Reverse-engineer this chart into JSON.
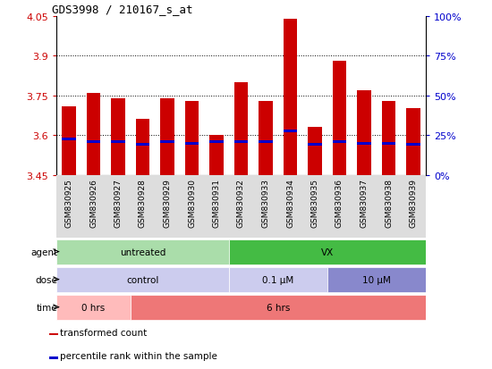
{
  "title": "GDS3998 / 210167_s_at",
  "samples": [
    "GSM830925",
    "GSM830926",
    "GSM830927",
    "GSM830928",
    "GSM830929",
    "GSM830930",
    "GSM830931",
    "GSM830932",
    "GSM830933",
    "GSM830934",
    "GSM830935",
    "GSM830936",
    "GSM830937",
    "GSM830938",
    "GSM830939"
  ],
  "bar_values": [
    3.71,
    3.76,
    3.74,
    3.66,
    3.74,
    3.73,
    3.6,
    3.8,
    3.73,
    4.04,
    3.63,
    3.88,
    3.77,
    3.73,
    3.7
  ],
  "percentile_values": [
    3.585,
    3.575,
    3.575,
    3.565,
    3.575,
    3.57,
    3.575,
    3.575,
    3.575,
    3.615,
    3.565,
    3.575,
    3.57,
    3.57,
    3.565
  ],
  "bar_bottom": 3.45,
  "ylim_min": 3.45,
  "ylim_max": 4.05,
  "yticks_left": [
    3.45,
    3.6,
    3.75,
    3.9,
    4.05
  ],
  "yticks_right": [
    0,
    25,
    50,
    75,
    100
  ],
  "yticks_right_vals": [
    3.45,
    3.6,
    3.75,
    3.9,
    4.05
  ],
  "hlines": [
    3.6,
    3.75,
    3.9
  ],
  "bar_color": "#cc0000",
  "percentile_color": "#0000cc",
  "bar_width": 0.55,
  "agent_labels": [
    {
      "label": "untreated",
      "start": 0,
      "end": 7,
      "color": "#aaddaa"
    },
    {
      "label": "VX",
      "start": 7,
      "end": 15,
      "color": "#44bb44"
    }
  ],
  "dose_labels": [
    {
      "label": "control",
      "start": 0,
      "end": 7,
      "color": "#ccccee"
    },
    {
      "label": "0.1 μM",
      "start": 7,
      "end": 11,
      "color": "#ccccee"
    },
    {
      "label": "10 μM",
      "start": 11,
      "end": 15,
      "color": "#8888cc"
    }
  ],
  "time_labels": [
    {
      "label": "0 hrs",
      "start": 0,
      "end": 3,
      "color": "#ffbbbb"
    },
    {
      "label": "6 hrs",
      "start": 3,
      "end": 15,
      "color": "#ee7777"
    }
  ],
  "legend_items": [
    {
      "color": "#cc0000",
      "label": "transformed count"
    },
    {
      "color": "#0000cc",
      "label": "percentile rank within the sample"
    }
  ],
  "main_bg": "#ffffff",
  "plot_bg": "#ffffff",
  "axis_label_color_left": "#cc0000",
  "axis_label_color_right": "#0000cc",
  "figsize": [
    5.5,
    4.14
  ],
  "dpi": 100
}
